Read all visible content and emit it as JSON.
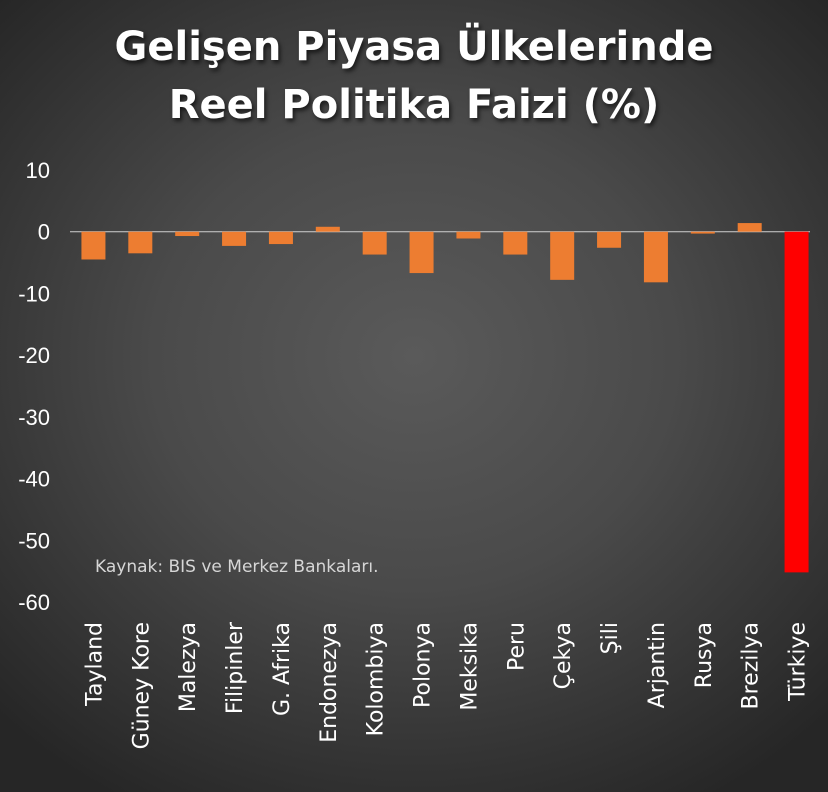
{
  "chart_data": {
    "type": "bar",
    "title_lines": [
      "Gelişen Piyasa Ülkelerinde",
      "Reel Politika Faizi (%)"
    ],
    "categories": [
      "Tayland",
      "Güney Kore",
      "Malezya",
      "Filipinler",
      "G. Afrika",
      "Endonezya",
      "Kolombiya",
      "Polonya",
      "Meksika",
      "Peru",
      "Çekya",
      "Şili",
      "Arjantin",
      "Rusya",
      "Brezilya",
      "Türkiye"
    ],
    "values": [
      -4.5,
      -3.5,
      -0.7,
      -2.3,
      -2.0,
      0.8,
      -3.7,
      -6.7,
      -1.1,
      -3.7,
      -7.8,
      -2.6,
      -8.2,
      -0.3,
      1.4,
      -55.2
    ],
    "ylim": [
      -60,
      10
    ],
    "yticks": [
      "10",
      "0",
      "-10",
      "-20",
      "-30",
      "-40",
      "-50",
      "-60"
    ],
    "grid": false,
    "annotation": "Kaynak: BIS ve Merkez Bankaları.",
    "colors": {
      "default_bar": "#ED7D31",
      "highlight_bar": "#FF0000",
      "axis": "#D0D0D0"
    },
    "highlight_category": "Türkiye"
  }
}
